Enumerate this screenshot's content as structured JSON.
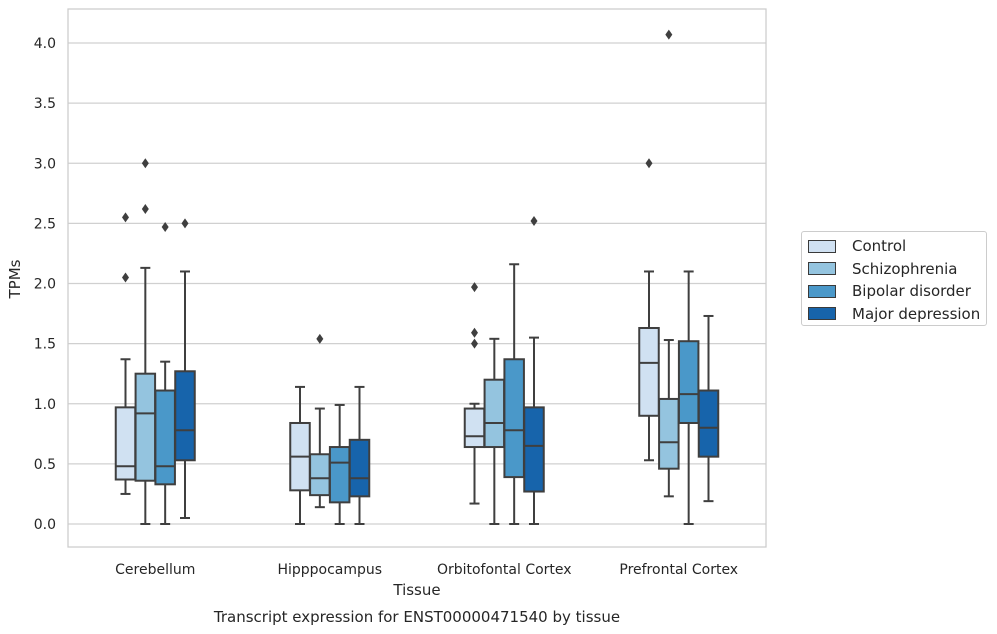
{
  "chart_data": {
    "type": "box",
    "title": "Transcript expression for ENST00000471540 by tissue",
    "xlabel": "Tissue",
    "ylabel": "TPMs",
    "ylim": [
      -0.19,
      4.28
    ],
    "yticks": [
      "0.0",
      "0.5",
      "1.0",
      "1.5",
      "2.0",
      "2.5",
      "3.0",
      "3.5",
      "4.0"
    ],
    "grid": true,
    "legend_position": "right",
    "categories": [
      "Cerebellum",
      "Hipppocampus",
      "Orbitofontal Cortex",
      "Prefrontal Cortex"
    ],
    "series": [
      {
        "name": "Control",
        "color": "#d0e1f2",
        "boxes": [
          {
            "whisker_low": 0.25,
            "q1": 0.37,
            "median": 0.48,
            "q3": 0.97,
            "whisker_high": 1.37,
            "outliers": [
              2.05,
              2.55
            ]
          },
          {
            "whisker_low": 0.0,
            "q1": 0.28,
            "median": 0.56,
            "q3": 0.84,
            "whisker_high": 1.14,
            "outliers": []
          },
          {
            "whisker_low": 0.17,
            "q1": 0.64,
            "median": 0.73,
            "q3": 0.96,
            "whisker_high": 1.0,
            "outliers": [
              1.5,
              1.59,
              1.97
            ]
          },
          {
            "whisker_low": 0.53,
            "q1": 0.9,
            "median": 1.34,
            "q3": 1.63,
            "whisker_high": 2.1,
            "outliers": [
              3.0
            ]
          }
        ]
      },
      {
        "name": "Schizophrenia",
        "color": "#94c4df",
        "boxes": [
          {
            "whisker_low": 0.0,
            "q1": 0.36,
            "median": 0.92,
            "q3": 1.25,
            "whisker_high": 2.13,
            "outliers": [
              2.62,
              3.0
            ]
          },
          {
            "whisker_low": 0.14,
            "q1": 0.24,
            "median": 0.38,
            "q3": 0.58,
            "whisker_high": 0.96,
            "outliers": [
              1.54
            ]
          },
          {
            "whisker_low": 0.0,
            "q1": 0.64,
            "median": 0.84,
            "q3": 1.2,
            "whisker_high": 1.54,
            "outliers": []
          },
          {
            "whisker_low": 0.23,
            "q1": 0.46,
            "median": 0.68,
            "q3": 1.04,
            "whisker_high": 1.53,
            "outliers": [
              4.07
            ]
          }
        ]
      },
      {
        "name": "Bipolar disorder",
        "color": "#4a98c9",
        "boxes": [
          {
            "whisker_low": 0.0,
            "q1": 0.33,
            "median": 0.48,
            "q3": 1.11,
            "whisker_high": 1.35,
            "outliers": [
              2.47
            ]
          },
          {
            "whisker_low": 0.0,
            "q1": 0.18,
            "median": 0.51,
            "q3": 0.64,
            "whisker_high": 0.99,
            "outliers": []
          },
          {
            "whisker_low": 0.0,
            "q1": 0.39,
            "median": 0.78,
            "q3": 1.37,
            "whisker_high": 2.16,
            "outliers": []
          },
          {
            "whisker_low": 0.0,
            "q1": 0.84,
            "median": 1.08,
            "q3": 1.52,
            "whisker_high": 2.1,
            "outliers": []
          }
        ]
      },
      {
        "name": "Major depression",
        "color": "#1764ab",
        "boxes": [
          {
            "whisker_low": 0.05,
            "q1": 0.53,
            "median": 0.78,
            "q3": 1.27,
            "whisker_high": 2.1,
            "outliers": [
              2.5
            ]
          },
          {
            "whisker_low": 0.0,
            "q1": 0.23,
            "median": 0.38,
            "q3": 0.7,
            "whisker_high": 1.14,
            "outliers": []
          },
          {
            "whisker_low": 0.0,
            "q1": 0.27,
            "median": 0.65,
            "q3": 0.97,
            "whisker_high": 1.55,
            "outliers": [
              2.52
            ]
          },
          {
            "whisker_low": 0.19,
            "q1": 0.56,
            "median": 0.8,
            "q3": 1.11,
            "whisker_high": 1.73,
            "outliers": []
          }
        ]
      }
    ]
  }
}
